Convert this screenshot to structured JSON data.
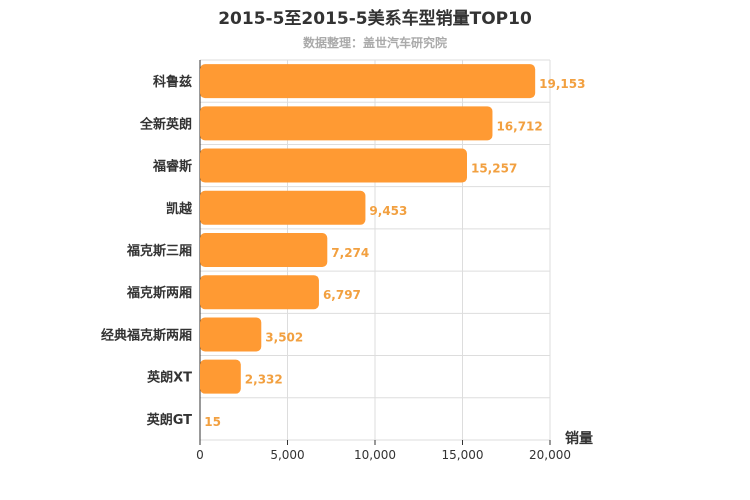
{
  "chart_data": {
    "type": "bar",
    "orientation": "horizontal",
    "title": "2015-5至2015-5美系车型销量TOP10",
    "subtitle": "数据整理：盖世汽车研究院",
    "categories": [
      "科鲁兹",
      "全新英朗",
      "福睿斯",
      "凯越",
      "福克斯三厢",
      "福克斯两厢",
      "经典福克斯两厢",
      "英朗XT",
      "英朗GT"
    ],
    "values": [
      19153,
      16712,
      15257,
      9453,
      7274,
      6797,
      3502,
      2332,
      15
    ],
    "value_labels": [
      "19,153",
      "16,712",
      "15,257",
      "9,453",
      "7,274",
      "6,797",
      "3,502",
      "2,332",
      "15"
    ],
    "xlabel": "销量",
    "xlim": [
      0,
      20000
    ],
    "x_ticks": [
      0,
      5000,
      10000,
      15000,
      20000
    ],
    "x_tick_labels": [
      "0",
      "5,000",
      "10,000",
      "15,000",
      "20,000"
    ],
    "grid": true,
    "bar_color": "#ff9a33",
    "value_label_color": "#f2a040"
  }
}
